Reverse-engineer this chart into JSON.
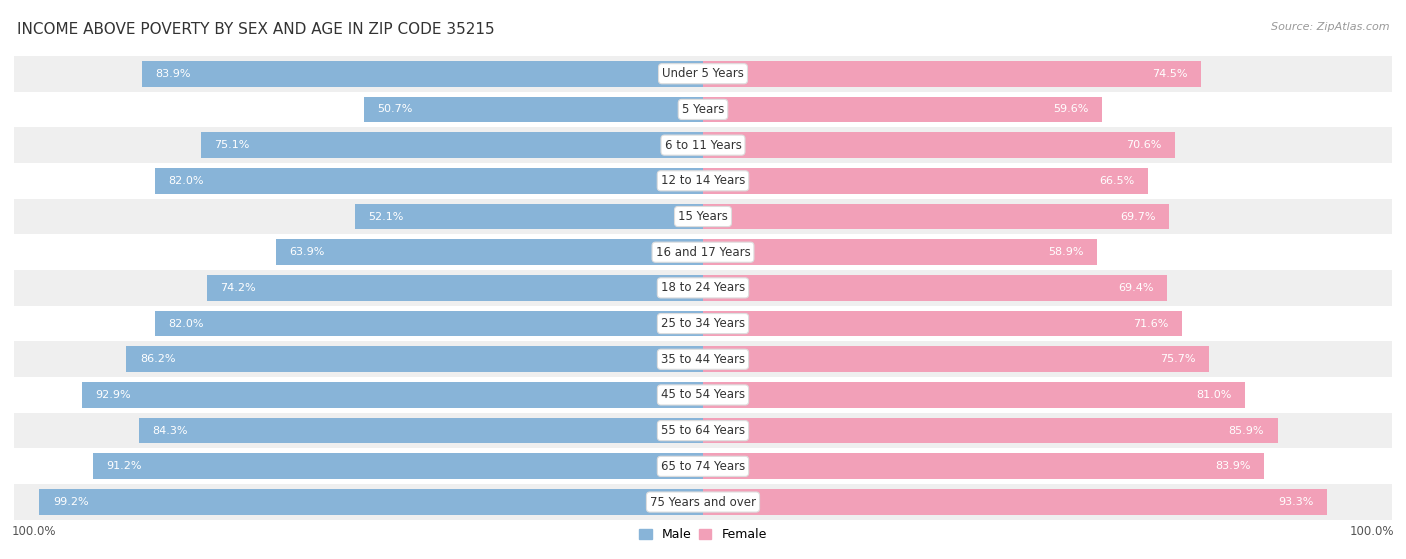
{
  "title": "INCOME ABOVE POVERTY BY SEX AND AGE IN ZIP CODE 35215",
  "source": "Source: ZipAtlas.com",
  "categories": [
    "Under 5 Years",
    "5 Years",
    "6 to 11 Years",
    "12 to 14 Years",
    "15 Years",
    "16 and 17 Years",
    "18 to 24 Years",
    "25 to 34 Years",
    "35 to 44 Years",
    "45 to 54 Years",
    "55 to 64 Years",
    "65 to 74 Years",
    "75 Years and over"
  ],
  "male_values": [
    83.9,
    50.7,
    75.1,
    82.0,
    52.1,
    63.9,
    74.2,
    82.0,
    86.2,
    92.9,
    84.3,
    91.2,
    99.2
  ],
  "female_values": [
    74.5,
    59.6,
    70.6,
    66.5,
    69.7,
    58.9,
    69.4,
    71.6,
    75.7,
    81.0,
    85.9,
    83.9,
    93.3
  ],
  "male_color": "#88b4d8",
  "female_color": "#f2a0b8",
  "background_row_odd": "#efefef",
  "background_row_even": "#ffffff",
  "title_fontsize": 11,
  "source_fontsize": 8,
  "label_fontsize": 8.5,
  "bar_label_fontsize": 8,
  "axis_label_fontsize": 8.5,
  "legend_fontsize": 9,
  "bar_height": 0.72
}
